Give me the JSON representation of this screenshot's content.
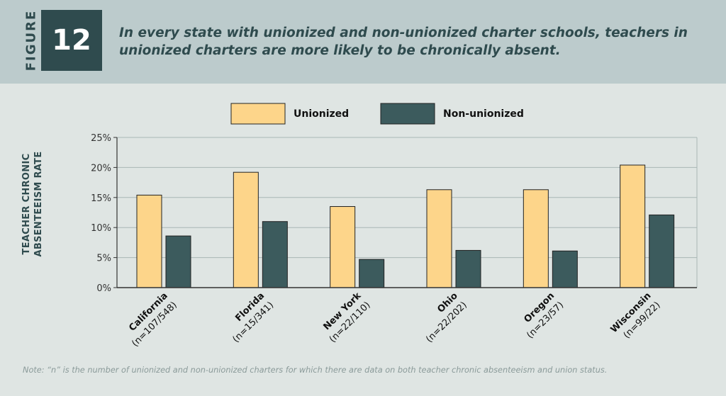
{
  "figure": {
    "label": "FIGURE",
    "number": "12",
    "title": "In every state with unionized and non-unionized charter schools, teachers in unionized charters are more likely to be chronically absent."
  },
  "chart_data": {
    "type": "bar",
    "title": "",
    "ylabel_lines": [
      "TEACHER CHRONIC",
      "ABSENTEEISM RATE"
    ],
    "ylim": [
      0,
      25
    ],
    "yticks": [
      0,
      5,
      10,
      15,
      20,
      25
    ],
    "ytick_labels": [
      "0%",
      "5%",
      "10%",
      "15%",
      "20%",
      "25%"
    ],
    "grid": true,
    "legend_position": "top-center",
    "categories": [
      "California",
      "Florida",
      "New York",
      "Ohio",
      "Oregon",
      "Wisconsin"
    ],
    "category_notes": [
      "(n=107/548)",
      "(n=15/341)",
      "(n=22/110)",
      "(n=22/202)",
      "(n=23/57)",
      "(n=99/22)"
    ],
    "series": [
      {
        "name": "Unionized",
        "color": "#fdd58a",
        "values": [
          15.4,
          19.2,
          13.5,
          16.3,
          16.3,
          20.4
        ]
      },
      {
        "name": "Non-unionized",
        "color": "#3c5b5d",
        "values": [
          8.6,
          11.0,
          4.7,
          6.2,
          6.1,
          12.1
        ]
      }
    ]
  },
  "note": "Note: “n” is the number of unionized and non-unionized charters for which there are data on both teacher chronic absenteeism and union status."
}
